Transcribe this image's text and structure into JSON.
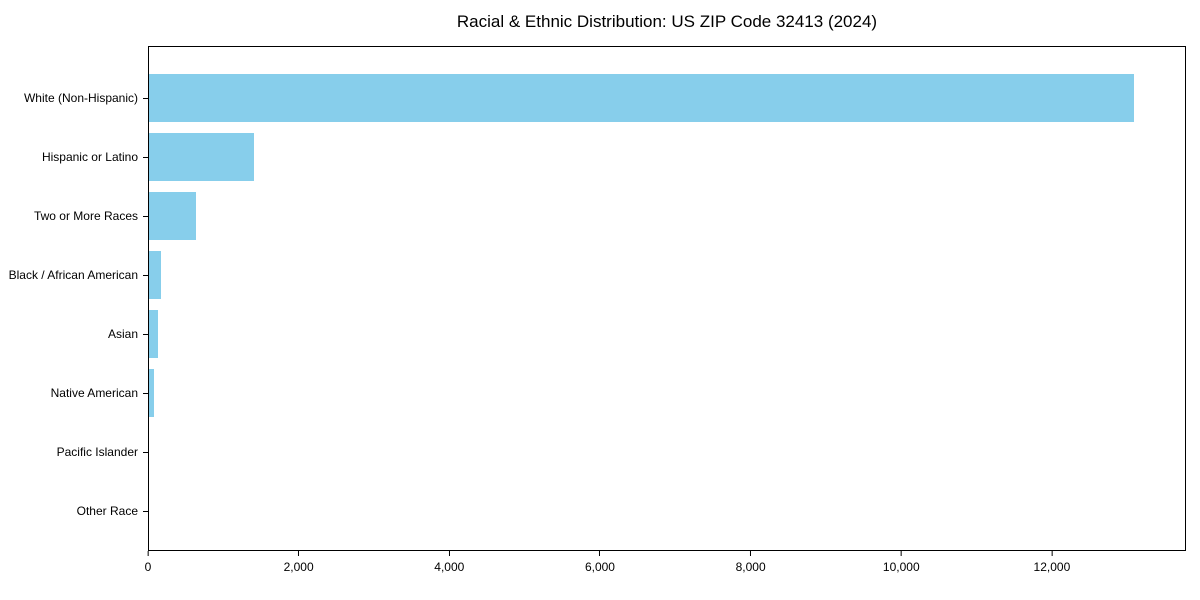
{
  "chart_data": {
    "type": "bar",
    "orientation": "horizontal",
    "title": "Racial & Ethnic Distribution: US ZIP Code 32413 (2024)",
    "categories": [
      "White (Non-Hispanic)",
      "Hispanic or Latino",
      "Two or More Races",
      "Black / African American",
      "Asian",
      "Native American",
      "Pacific Islander",
      "Other Race"
    ],
    "values": [
      13100,
      1400,
      620,
      160,
      120,
      70,
      0,
      0
    ],
    "bar_color": "#87CEEB",
    "xlabel": "",
    "ylabel": "",
    "xlim": [
      0,
      13780
    ],
    "x_ticks": [
      0,
      2000,
      4000,
      6000,
      8000,
      10000,
      12000
    ],
    "x_tick_labels": [
      "0",
      "2,000",
      "4,000",
      "6,000",
      "8,000",
      "10,000",
      "12,000"
    ],
    "grid": false,
    "legend": null,
    "frame": "full-box",
    "text_color": "#000000",
    "spine_color": "#000000"
  }
}
